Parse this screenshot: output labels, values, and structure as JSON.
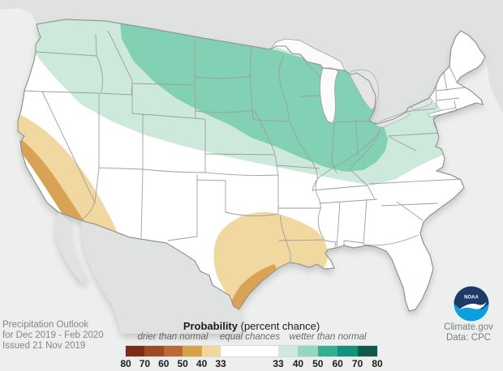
{
  "map": {
    "caption_lines": [
      "Precipitation Outlook",
      "for Dec 2019 - Feb 2020",
      "Issued 21 Nov 2019"
    ],
    "credit_line1": "Climate.gov",
    "credit_line2": "Data: CPC",
    "noaa_logo_text": "NOAA",
    "regions": [
      {
        "area": "Pacific Northwest through Northern Plains, Great Lakes and Ohio Valley",
        "category": "wetter than normal",
        "probability_percent": "33-50"
      },
      {
        "area": "Central/Southern California and Southwest",
        "category": "drier than normal",
        "probability_percent": "33-50"
      },
      {
        "area": "Texas Gulf Coast and Lower Mississippi Valley",
        "category": "drier than normal",
        "probability_percent": "33-50"
      }
    ]
  },
  "legend": {
    "title_bold": "Probability",
    "title_rest": " (percent chance)",
    "drier_label": "drier than normal",
    "equal_label": "equal chances",
    "wetter_label": "wetter than normal",
    "drier_ticks": [
      "80",
      "70",
      "60",
      "50",
      "40",
      "33"
    ],
    "wetter_ticks": [
      "33",
      "40",
      "50",
      "60",
      "70",
      "80"
    ],
    "drier_colors": [
      "#7c2d17",
      "#9d4a27",
      "#bb6a36",
      "#d6a348",
      "#f0d79f"
    ],
    "equal_color": "#ffffff",
    "wetter_colors": [
      "#cfe9dd",
      "#95d7be",
      "#33af91",
      "#13927b",
      "#0d5b4c"
    ]
  },
  "colors": {
    "ocean": "#edefee",
    "neighbor_land": "#e0e2e1",
    "lake_gray": "#e3e5e4",
    "lake_white": "#fafbfa",
    "us_fill": "#ffffff",
    "wetter_33_40": "#cde9dc",
    "wetter_40_50": "#82d1b4",
    "drier_33_40": "#f0d8a0",
    "drier_40_50": "#d9a356",
    "noaa_navy": "#1e3a66",
    "noaa_blue": "#0ba0dd"
  }
}
